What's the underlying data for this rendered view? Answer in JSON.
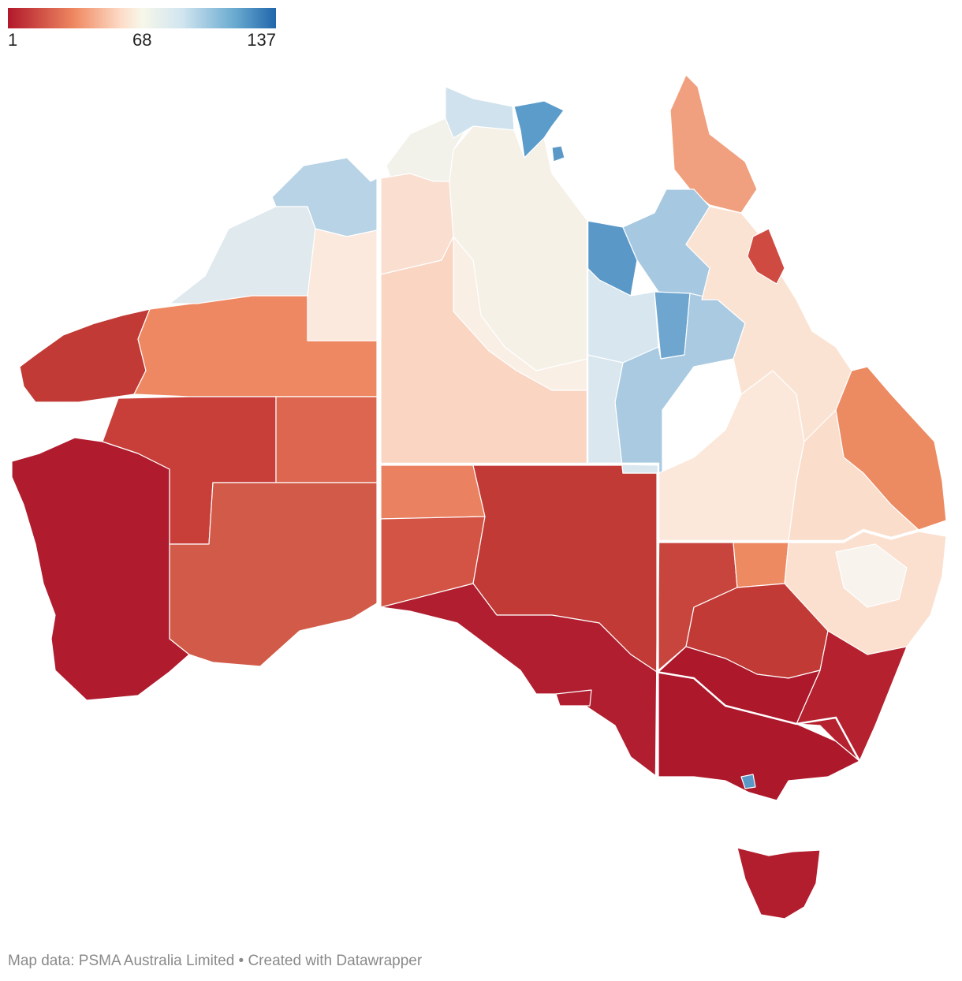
{
  "legend": {
    "min": "1",
    "mid": "68",
    "max": "137",
    "colors": [
      "#b2182b",
      "#ef8a62",
      "#fddbc7",
      "#f7f7e9",
      "#d1e5f0",
      "#67a9cf",
      "#2166ac"
    ]
  },
  "footer": "Map data: PSMA Australia Limited • Created with Datawrapper",
  "regions": [
    {
      "name": "wa-southwest",
      "color": "#b01c2e"
    },
    {
      "name": "wa-pilbara-coast",
      "color": "#c13a35"
    },
    {
      "name": "wa-pilbara-east",
      "color": "#ee8862"
    },
    {
      "name": "wa-kimberley-west",
      "color": "#b8d3e6"
    },
    {
      "name": "wa-kimberley-north",
      "color": "#dfe9ee"
    },
    {
      "name": "wa-kimberley-east",
      "color": "#fbe9de"
    },
    {
      "name": "wa-goldfields",
      "color": "#c83f3a"
    },
    {
      "name": "wa-central-desert",
      "color": "#dc6650"
    },
    {
      "name": "wa-nullarbor",
      "color": "#d25a48"
    },
    {
      "name": "nt-top-end-west",
      "color": "#f2f2ea"
    },
    {
      "name": "nt-top-end-central",
      "color": "#fadfd0"
    },
    {
      "name": "nt-arnhem-west",
      "color": "#cfe2ed"
    },
    {
      "name": "nt-arnhem-east",
      "color": "#5b9ccb"
    },
    {
      "name": "nt-gulf",
      "color": "#f5f1e7"
    },
    {
      "name": "nt-barkly",
      "color": "#faefe5"
    },
    {
      "name": "nt-central",
      "color": "#f9d5c2"
    },
    {
      "name": "sa-north-west",
      "color": "#ea8160"
    },
    {
      "name": "sa-west",
      "color": "#d35444"
    },
    {
      "name": "sa-outback",
      "color": "#c13a36"
    },
    {
      "name": "sa-south-east",
      "color": "#b01e2f"
    },
    {
      "name": "qld-cape-york",
      "color": "#f0a07e"
    },
    {
      "name": "qld-gulf-west",
      "color": "#5a98c8"
    },
    {
      "name": "qld-gulf-central",
      "color": "#a6c8e0"
    },
    {
      "name": "qld-north-west",
      "color": "#d7e6ef"
    },
    {
      "name": "qld-central-west",
      "color": "#6ea6d0"
    },
    {
      "name": "qld-central",
      "color": "#a9cae1"
    },
    {
      "name": "qld-south-west",
      "color": "#dae7ef"
    },
    {
      "name": "qld-channel-country",
      "color": "#fbe8da"
    },
    {
      "name": "qld-north-east",
      "color": "#fbe3d3"
    },
    {
      "name": "qld-mackay",
      "color": "#cf4b41"
    },
    {
      "name": "qld-south-east",
      "color": "#ec8a62"
    },
    {
      "name": "qld-darling-downs",
      "color": "#faddcb"
    },
    {
      "name": "nsw-far-west",
      "color": "#c8453e"
    },
    {
      "name": "nsw-west-central",
      "color": "#ee8a62"
    },
    {
      "name": "nsw-central",
      "color": "#fbe0d0"
    },
    {
      "name": "nsw-north",
      "color": "#f8f3ec"
    },
    {
      "name": "nsw-riverina",
      "color": "#c23a36"
    },
    {
      "name": "nsw-south-coast",
      "color": "#b5212f"
    },
    {
      "name": "vic",
      "color": "#ad182b"
    },
    {
      "name": "tas",
      "color": "#b31e2e"
    }
  ]
}
